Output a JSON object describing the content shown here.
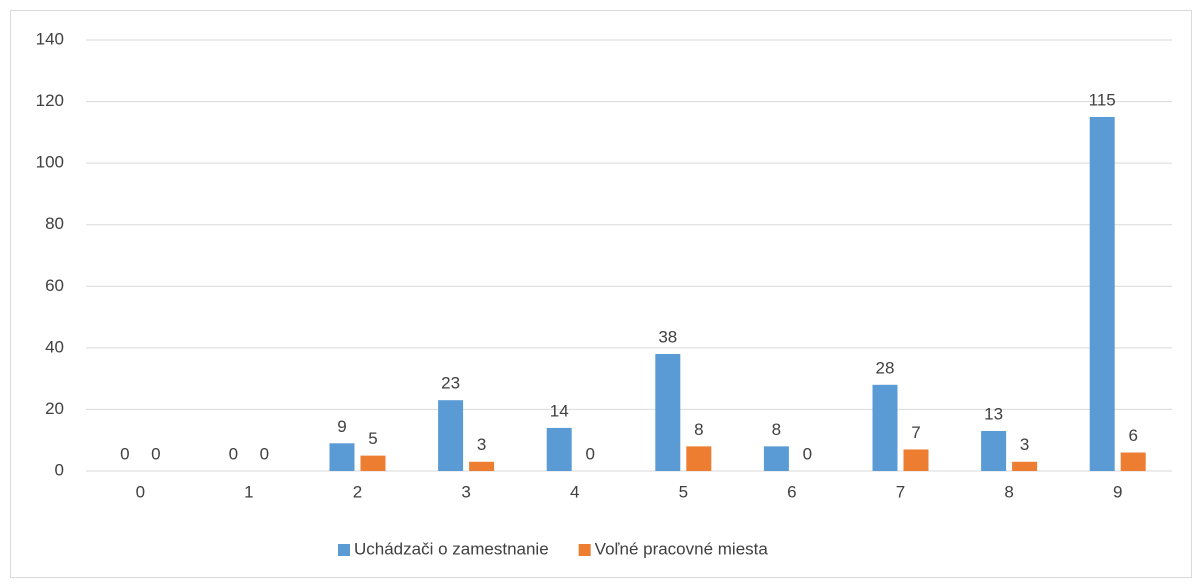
{
  "chart_data": {
    "type": "bar",
    "categories": [
      "0",
      "1",
      "2",
      "3",
      "4",
      "5",
      "6",
      "7",
      "8",
      "9"
    ],
    "series": [
      {
        "name": "Uchádzači o zamestnanie",
        "color": "#5b9bd5",
        "values": [
          0,
          0,
          9,
          23,
          14,
          38,
          8,
          28,
          13,
          115
        ]
      },
      {
        "name": "Voľné pracovné miesta",
        "color": "#ed7d31",
        "values": [
          0,
          0,
          5,
          3,
          0,
          8,
          0,
          7,
          3,
          6
        ]
      }
    ],
    "ylim": [
      0,
      140
    ],
    "yticks": [
      0,
      20,
      40,
      60,
      80,
      100,
      120,
      140
    ],
    "grid": true,
    "legend": "bottom"
  }
}
